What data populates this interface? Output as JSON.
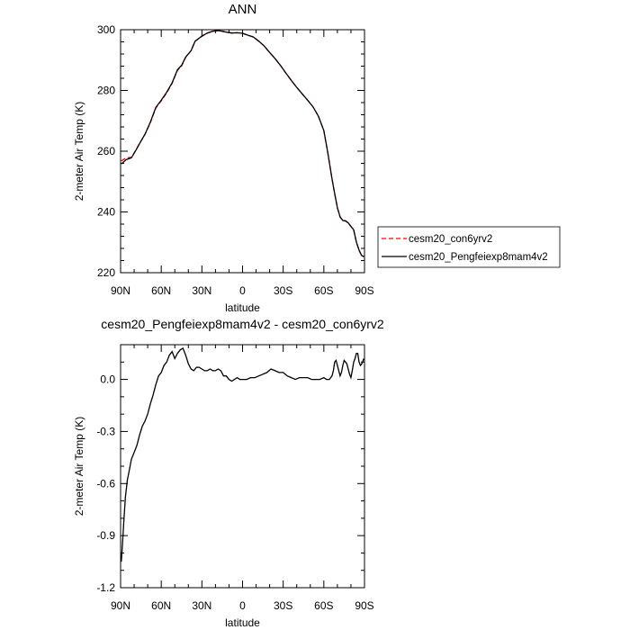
{
  "chart_data": [
    {
      "type": "line",
      "title": "ANN",
      "xlabel": "latitude",
      "ylabel": "2-meter Air Temp (K)",
      "xlim": [
        90,
        -90
      ],
      "ylim": [
        220,
        300
      ],
      "x_ticks": [
        90,
        60,
        30,
        0,
        -30,
        -60,
        -90
      ],
      "x_tick_labels": [
        "90N",
        "60N",
        "30N",
        "0",
        "30S",
        "60S",
        "90S"
      ],
      "y_ticks": [
        220,
        240,
        260,
        280,
        300
      ],
      "y_tick_labels": [
        "220",
        "240",
        "260",
        "280",
        "300"
      ],
      "legend": "outside-right",
      "series": [
        {
          "name": "cesm20_con6yrv2",
          "color": "#ff0000",
          "dash": true,
          "x": [
            89.5,
            86,
            82,
            79,
            76,
            72,
            68,
            64,
            60,
            56,
            52,
            48,
            45,
            42,
            38,
            35,
            30,
            26,
            22,
            18,
            15,
            12,
            8,
            4,
            0,
            -4,
            -8,
            -12,
            -16,
            -20,
            -24,
            -28,
            -32,
            -36,
            -40,
            -44,
            -48,
            -52,
            -56,
            -60,
            -63,
            -66,
            -68,
            -70,
            -72,
            -74,
            -76,
            -78,
            -80,
            -82,
            -84,
            -86,
            -88,
            -89.5
          ],
          "y": [
            256.8,
            257.8,
            258.0,
            260.2,
            262.6,
            265.5,
            269.4,
            274.2,
            276.6,
            279.2,
            282.3,
            286.6,
            288.1,
            290.9,
            293.1,
            296.2,
            297.8,
            298.9,
            299.5,
            299.7,
            299.5,
            299.2,
            298.9,
            299.0,
            298.8,
            298.2,
            297.6,
            296.2,
            294.6,
            292.5,
            290.5,
            288.2,
            285.7,
            283.3,
            281.0,
            278.9,
            276.8,
            274.6,
            271.5,
            266.8,
            259.2,
            250.9,
            246.0,
            241.3,
            238.3,
            237.1,
            237.0,
            236.3,
            235.2,
            234.0,
            230.0,
            227.3,
            225.5,
            225.2
          ]
        },
        {
          "name": "cesm20_Pengfeiexp8mam4v2",
          "color": "#000000",
          "dash": false,
          "x": [
            89.5,
            86,
            82,
            79,
            76,
            72,
            68,
            64,
            60,
            56,
            52,
            48,
            45,
            42,
            38,
            35,
            30,
            26,
            22,
            18,
            15,
            12,
            8,
            4,
            0,
            -4,
            -8,
            -12,
            -16,
            -20,
            -24,
            -28,
            -32,
            -36,
            -40,
            -44,
            -48,
            -52,
            -56,
            -60,
            -63,
            -66,
            -68,
            -70,
            -72,
            -74,
            -76,
            -78,
            -80,
            -82,
            -84,
            -86,
            -88,
            -89.5
          ],
          "y": [
            255.8,
            257.2,
            257.8,
            260.1,
            262.5,
            265.6,
            269.6,
            274.4,
            276.8,
            279.4,
            282.5,
            286.8,
            288.3,
            291.0,
            293.1,
            296.2,
            297.9,
            298.9,
            299.5,
            299.7,
            299.5,
            299.2,
            298.9,
            299.0,
            298.8,
            298.2,
            297.6,
            296.2,
            294.6,
            292.5,
            290.5,
            288.2,
            285.7,
            283.3,
            281.0,
            278.9,
            276.8,
            274.6,
            271.5,
            266.8,
            259.2,
            250.9,
            246.0,
            241.4,
            238.4,
            237.2,
            237.1,
            236.4,
            235.3,
            234.1,
            230.1,
            227.4,
            225.6,
            225.4
          ]
        }
      ]
    },
    {
      "type": "line",
      "title": "cesm20_Pengfeiexp8mam4v2 - cesm20_con6yrv2",
      "xlabel": "latitude",
      "ylabel": "2-meter Air Temp (K)",
      "xlim": [
        90,
        -90
      ],
      "ylim": [
        -1.2,
        0.2
      ],
      "x_ticks": [
        90,
        60,
        30,
        0,
        -30,
        -60,
        -90
      ],
      "x_tick_labels": [
        "90N",
        "60N",
        "30N",
        "0",
        "30S",
        "60S",
        "90S"
      ],
      "y_ticks": [
        -1.2,
        -0.9,
        -0.6,
        -0.3,
        0.0
      ],
      "y_tick_labels": [
        "-1.2",
        "-0.9",
        "-0.6",
        "-0.3",
        "0.0"
      ],
      "series": [
        {
          "color": "#000000",
          "dash": false,
          "x": [
            89.5,
            88.5,
            87.5,
            86.5,
            85,
            83.5,
            82,
            80,
            78,
            76,
            74,
            72,
            70,
            68,
            66,
            64,
            62,
            60,
            58,
            56,
            54,
            52,
            50,
            48,
            46,
            44,
            42,
            40,
            38,
            36,
            34,
            32,
            30,
            28,
            26,
            24,
            22,
            20,
            18,
            16,
            14,
            12,
            10,
            8,
            6,
            4,
            2,
            0,
            -3,
            -6,
            -9,
            -12,
            -15,
            -18,
            -21,
            -24,
            -27,
            -30,
            -33,
            -36,
            -39,
            -42,
            -45,
            -48,
            -51,
            -54,
            -57,
            -60,
            -62,
            -64,
            -66,
            -67,
            -68,
            -69,
            -70,
            -71,
            -72,
            -73,
            -74,
            -75,
            -76,
            -77,
            -78,
            -79,
            -80,
            -81,
            -82,
            -83,
            -84,
            -85,
            -86,
            -87,
            -88,
            -89,
            -89.5
          ],
          "y": [
            -1.05,
            -0.93,
            -0.8,
            -0.68,
            -0.58,
            -0.52,
            -0.46,
            -0.42,
            -0.38,
            -0.32,
            -0.27,
            -0.24,
            -0.2,
            -0.14,
            -0.09,
            -0.03,
            0.02,
            0.04,
            0.08,
            0.1,
            0.14,
            0.16,
            0.12,
            0.15,
            0.17,
            0.18,
            0.14,
            0.09,
            0.06,
            0.05,
            0.07,
            0.07,
            0.06,
            0.05,
            0.05,
            0.06,
            0.05,
            0.05,
            0.06,
            0.05,
            0.02,
            0.02,
            0.0,
            -0.01,
            0.0,
            0.01,
            0.0,
            0.0,
            0.0,
            0.01,
            0.01,
            0.02,
            0.03,
            0.04,
            0.06,
            0.05,
            0.04,
            0.04,
            0.02,
            0.01,
            0.0,
            0.01,
            0.01,
            0.01,
            0.0,
            0.0,
            0.0,
            0.01,
            0.0,
            0.0,
            0.02,
            0.05,
            0.1,
            0.11,
            0.08,
            0.05,
            0.02,
            0.04,
            0.08,
            0.11,
            0.1,
            0.09,
            0.06,
            0.03,
            0.01,
            0.05,
            0.1,
            0.12,
            0.15,
            0.15,
            0.1,
            0.08,
            0.09,
            0.11,
            0.12
          ]
        }
      ]
    }
  ]
}
